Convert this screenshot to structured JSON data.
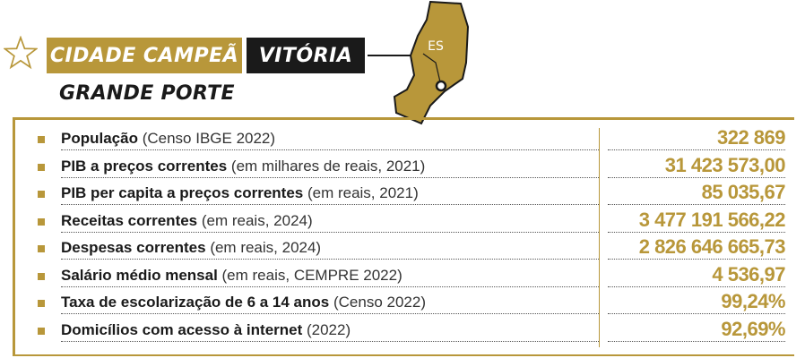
{
  "header": {
    "banner_label": "CIDADE CAMPEÃ",
    "city": "VITÓRIA",
    "category": "GRANDE PORTE",
    "state_abbr": "ES",
    "accent_color": "#b8973a"
  },
  "indicators": [
    {
      "label": "População",
      "note": " (Censo IBGE 2022)",
      "value": "322 869"
    },
    {
      "label": "PIB a preços correntes",
      "note": " (em milhares de reais, 2021)",
      "value": "31 423 573,00"
    },
    {
      "label": "PIB per capita a preços correntes",
      "note": " (em reais, 2021)",
      "value": "85 035,67"
    },
    {
      "label": "Receitas correntes",
      "note": " (em reais, 2024)",
      "value": "3 477 191 566,22"
    },
    {
      "label": "Despesas correntes",
      "note": " (em reais, 2024)",
      "value": "2 826 646 665,73"
    },
    {
      "label": "Salário médio mensal",
      "note": " (em reais, CEMPRE 2022)",
      "value": "4 536,97"
    },
    {
      "label": "Taxa de escolarização de 6 a 14 anos",
      "note": " (Censo 2022)",
      "value": "99,24%"
    },
    {
      "label": "Domicílios com acesso à internet",
      "note": " (2022)",
      "value": "92,69%"
    }
  ]
}
